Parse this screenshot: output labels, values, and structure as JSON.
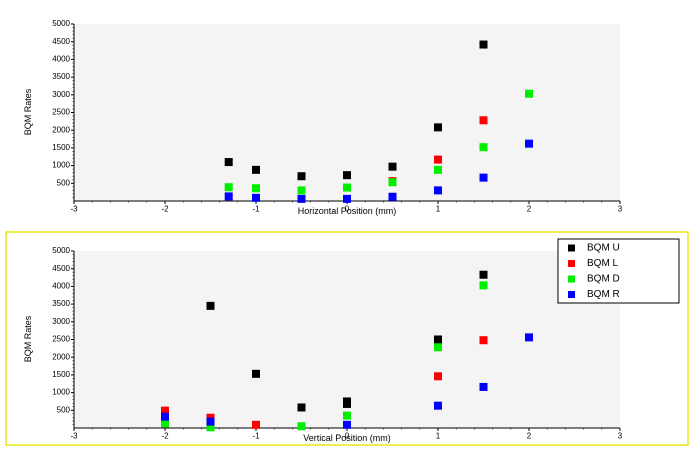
{
  "chart_data": [
    {
      "type": "scatter",
      "xlabel": "Horizontal Position (mm)",
      "ylabel": "BQM Rates",
      "xlim": [
        -3,
        3
      ],
      "ylim": [
        0,
        5000
      ],
      "x_ticks": [
        "-3",
        "-2",
        "-1",
        "0",
        "1",
        "2",
        "3"
      ],
      "y_ticks": [
        "500",
        "1000",
        "1500",
        "2000",
        "2500",
        "3000",
        "3500",
        "4000",
        "4500",
        "5000"
      ],
      "grid": false,
      "series": [
        {
          "name": "BQM U",
          "color": "#000000",
          "points": [
            [
              -1.3,
              1100
            ],
            [
              -1.0,
              880
            ],
            [
              -0.5,
              700
            ],
            [
              0,
              730
            ],
            [
              0.5,
              970
            ],
            [
              1.0,
              2080
            ],
            [
              1.5,
              4420
            ]
          ]
        },
        {
          "name": "BQM L",
          "color": "#ff0000",
          "points": [
            [
              0.5,
              560
            ],
            [
              1.0,
              1170
            ],
            [
              1.5,
              2280
            ]
          ]
        },
        {
          "name": "BQM D",
          "color": "#00ee00",
          "points": [
            [
              -1.3,
              390
            ],
            [
              -1.0,
              360
            ],
            [
              -0.5,
              300
            ],
            [
              0,
              380
            ],
            [
              0.5,
              530
            ],
            [
              1.0,
              880
            ],
            [
              1.5,
              1520
            ],
            [
              2.0,
              3030
            ]
          ]
        },
        {
          "name": "BQM R",
          "color": "#0000ff",
          "points": [
            [
              -1.3,
              130
            ],
            [
              -1.0,
              90
            ],
            [
              -0.5,
              60
            ],
            [
              0,
              60
            ],
            [
              0.5,
              120
            ],
            [
              1.0,
              300
            ],
            [
              1.5,
              660
            ],
            [
              2.0,
              1620
            ]
          ]
        }
      ]
    },
    {
      "type": "scatter",
      "xlabel": "Vertical Position (mm)",
      "ylabel": "BQM Rates",
      "xlim": [
        -3,
        3
      ],
      "ylim": [
        0,
        5000
      ],
      "x_ticks": [
        "-3",
        "-2",
        "-1",
        "0",
        "1",
        "2",
        "3"
      ],
      "y_ticks": [
        "500",
        "1000",
        "1500",
        "2000",
        "2500",
        "3000",
        "3500",
        "4000",
        "4500",
        "5000"
      ],
      "grid": false,
      "legend_position": "top-right",
      "series": [
        {
          "name": "BQM U",
          "color": "#000000",
          "points": [
            [
              -1.5,
              3450
            ],
            [
              -1.0,
              1530
            ],
            [
              -0.5,
              580
            ],
            [
              0,
              750
            ],
            [
              0,
              680
            ],
            [
              1.0,
              2500
            ],
            [
              1.5,
              4330
            ]
          ]
        },
        {
          "name": "BQM L",
          "color": "#ff0000",
          "points": [
            [
              -2.0,
              490
            ],
            [
              -1.5,
              290
            ],
            [
              -1.0,
              90
            ],
            [
              1.0,
              1460
            ],
            [
              1.5,
              2480
            ]
          ]
        },
        {
          "name": "BQM D",
          "color": "#00ee00",
          "points": [
            [
              -2.0,
              130
            ],
            [
              -1.5,
              20
            ],
            [
              -0.5,
              50
            ],
            [
              0,
              350
            ],
            [
              1.0,
              2280
            ],
            [
              1.5,
              4030
            ]
          ]
        },
        {
          "name": "BQM R",
          "color": "#0000ff",
          "points": [
            [
              -2.0,
              320
            ],
            [
              -1.5,
              180
            ],
            [
              0,
              90
            ],
            [
              1.0,
              630
            ],
            [
              1.5,
              1160
            ],
            [
              2.0,
              2560
            ]
          ]
        }
      ]
    }
  ]
}
